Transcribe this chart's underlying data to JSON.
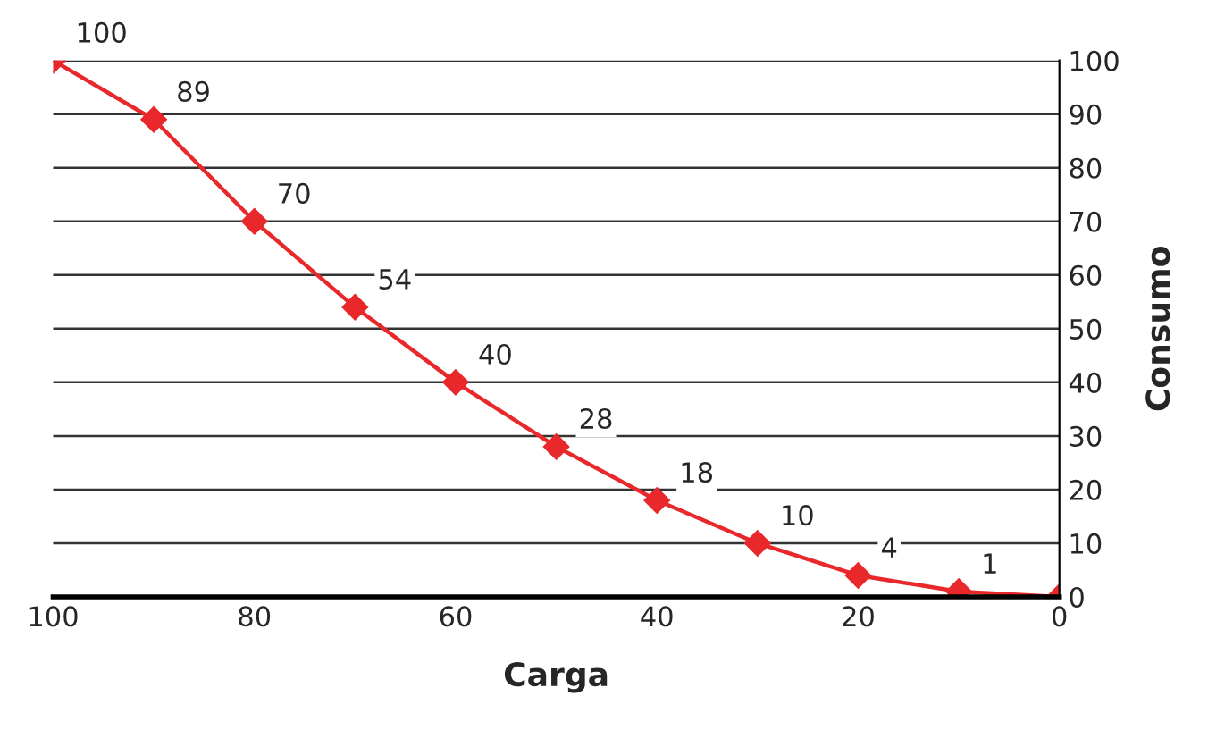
{
  "chart_data": {
    "type": "line",
    "xlabel": "Carga",
    "ylabel": "Consumo",
    "x": [
      100,
      90,
      80,
      70,
      60,
      50,
      40,
      30,
      20,
      10,
      0
    ],
    "series": [
      {
        "color": "#e8282b",
        "values": [
          100,
          89,
          70,
          54,
          40,
          28,
          18,
          10,
          4,
          1,
          0
        ],
        "value_labels": [
          "100",
          "89",
          "70",
          "54",
          "40",
          "28",
          "18",
          "10",
          "4",
          "1",
          null
        ]
      }
    ],
    "xlim": [
      100,
      0
    ],
    "xticks": [
      100,
      80,
      60,
      40,
      20,
      0
    ],
    "ylim": [
      0,
      100
    ],
    "yticks": [
      0,
      10,
      20,
      30,
      40,
      50,
      60,
      70,
      80,
      90,
      100
    ],
    "grid": "y",
    "marker": "diamond",
    "line_style": "solid"
  }
}
